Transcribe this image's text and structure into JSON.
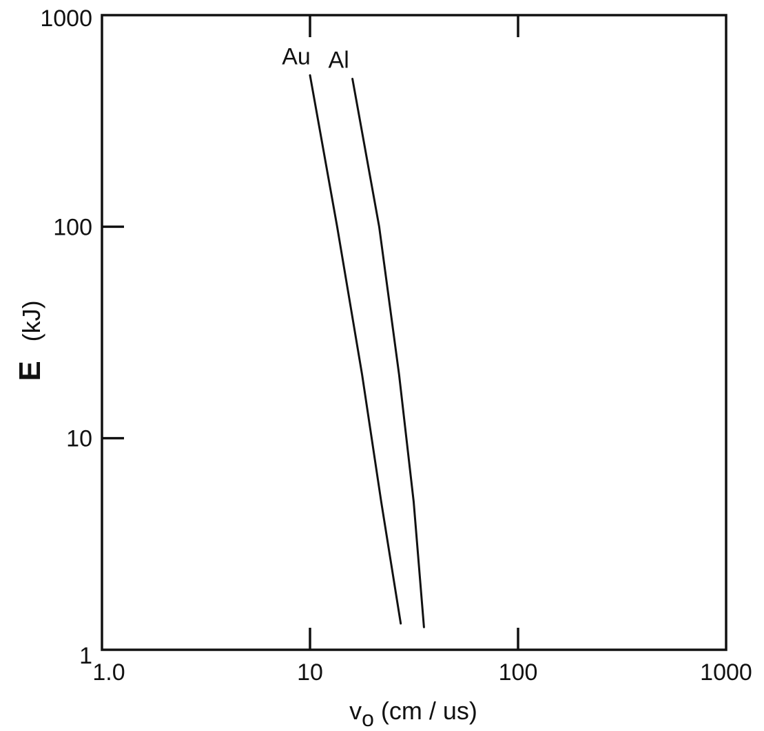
{
  "chart_data": {
    "type": "line",
    "x_scale": "log",
    "y_scale": "log",
    "xlim": [
      1,
      1000
    ],
    "ylim": [
      1,
      1000
    ],
    "x_ticks": [
      {
        "value": 1,
        "label": "1.0"
      },
      {
        "value": 10,
        "label": "10"
      },
      {
        "value": 100,
        "label": "100"
      },
      {
        "value": 1000,
        "label": "1000"
      }
    ],
    "y_ticks": [
      {
        "value": 1,
        "label": "1"
      },
      {
        "value": 10,
        "label": "10"
      },
      {
        "value": 100,
        "label": "100"
      },
      {
        "value": 1000,
        "label": "1000"
      }
    ],
    "xlabel_main": "v",
    "xlabel_sub": "o",
    "xlabel_rest": " (cm / us)",
    "ylabel_main": "E",
    "ylabel_rest": "(kJ)",
    "grid": false,
    "series": [
      {
        "name": "Au",
        "x": [
          10.0,
          13.5,
          17.8,
          22.0,
          27.3
        ],
        "y": [
          520,
          100,
          20,
          5,
          1.33
        ]
      },
      {
        "name": "Al",
        "x": [
          16.0,
          21.5,
          26.8,
          31.5,
          35.3
        ],
        "y": [
          500,
          100,
          20,
          5,
          1.28
        ]
      }
    ]
  }
}
